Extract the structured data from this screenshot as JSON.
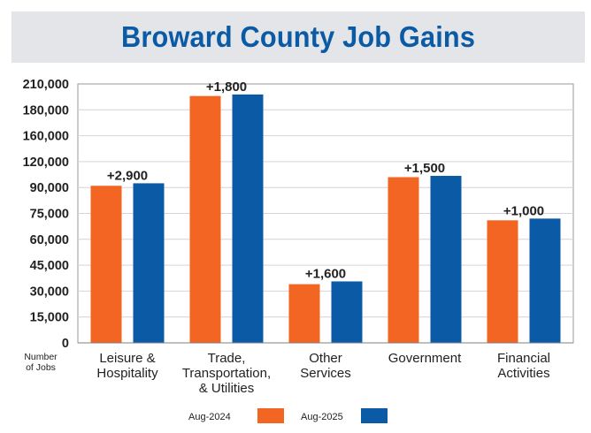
{
  "title": "Broward County Job Gains",
  "chart_data": {
    "type": "bar",
    "title": "Broward County Job Gains",
    "ylabel_lines": [
      "Number",
      "of Jobs"
    ],
    "xlabel": "",
    "y_tick_labels": [
      "0",
      "15,000",
      "30,000",
      "45,000",
      "60,000",
      "75,000",
      "90,000",
      "120,000",
      "160,000",
      "180,000",
      "210,000"
    ],
    "categories": [
      [
        "Leisure &",
        "Hospitality"
      ],
      [
        "Trade,",
        "Transportation,",
        "& Utilities"
      ],
      [
        "Other",
        "Services"
      ],
      [
        "Government"
      ],
      [
        "Financial",
        "Activities"
      ]
    ],
    "series": [
      {
        "name": "Aug-2024",
        "color": "#f26522",
        "values": [
          92000,
          196000,
          34000,
          102000,
          71000
        ]
      },
      {
        "name": "Aug-2025",
        "color": "#0b5aa5",
        "values": [
          94900,
          197800,
          35600,
          103500,
          72000
        ]
      }
    ],
    "data_labels": [
      "+2,900",
      "+1,800",
      "+1,600",
      "+1,500",
      "+1,000"
    ],
    "grid": true,
    "legend_position": "bottom"
  }
}
